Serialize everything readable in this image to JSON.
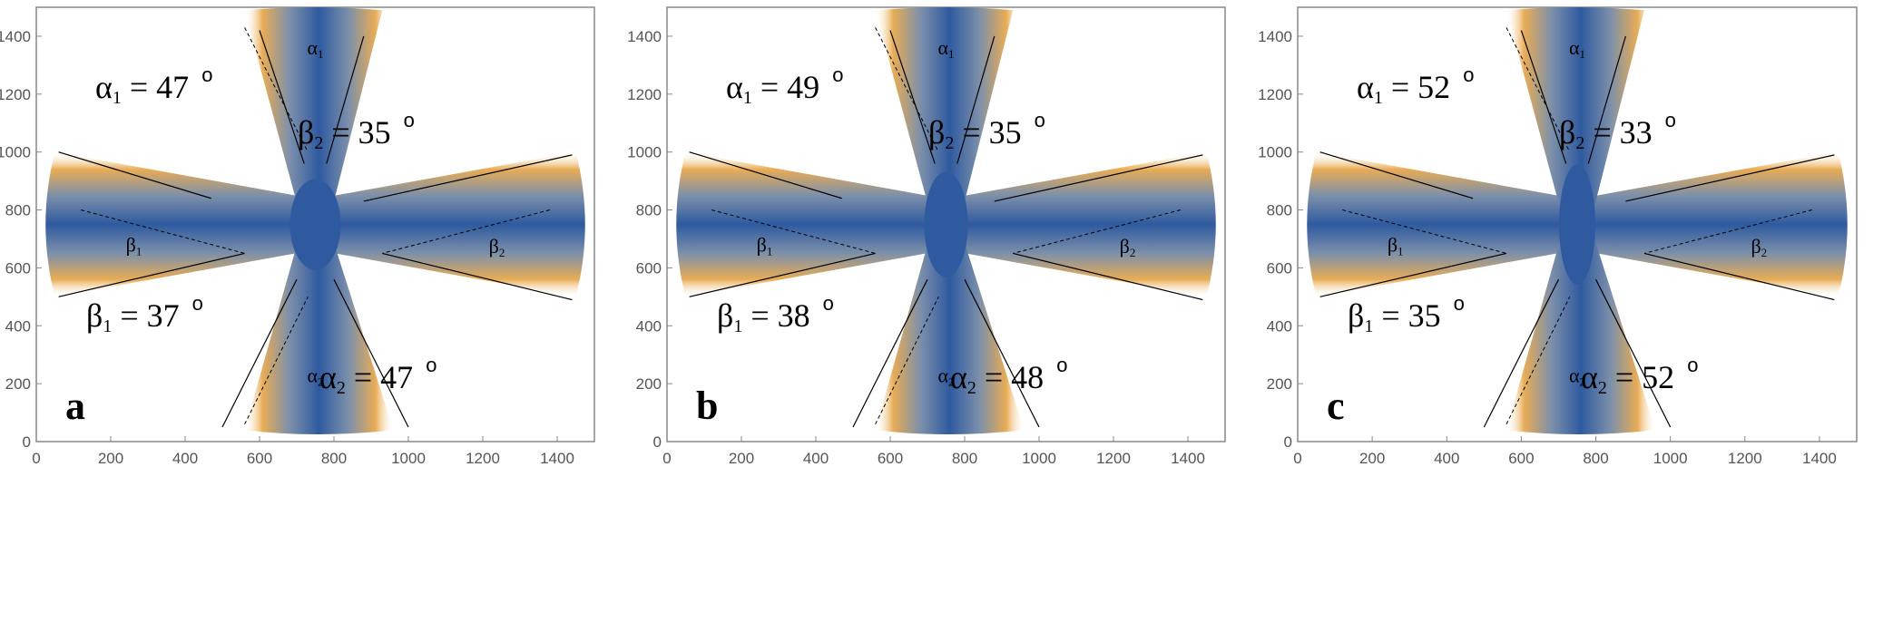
{
  "colors": {
    "center": "#2f5aa0",
    "mid": "#7d90aa",
    "edge": "#e8ac55",
    "fade": "#fff6e6",
    "frame": "#888888"
  },
  "chart_data": [
    {
      "type": "heatmap",
      "panel_label": "a",
      "xlim": [
        0,
        1500
      ],
      "ylim": [
        0,
        1500
      ],
      "xticks": [
        "0",
        "200",
        "400",
        "600",
        "800",
        "1000",
        "1200",
        "1400"
      ],
      "yticks": [
        "0",
        "200",
        "400",
        "600",
        "800",
        "1000",
        "1200",
        "1400"
      ],
      "lobes": [
        {
          "name": "α1",
          "greek": "α",
          "sub": "1",
          "value": "47",
          "deg": "o",
          "direction": "up"
        },
        {
          "name": "α2",
          "greek": "α",
          "sub": "2",
          "value": "47",
          "deg": "o",
          "direction": "down"
        },
        {
          "name": "β1",
          "greek": "β",
          "sub": "1",
          "value": "37",
          "deg": "o",
          "direction": "left"
        },
        {
          "name": "β2",
          "greek": "β",
          "sub": "2",
          "value": "35",
          "deg": "o",
          "direction": "right"
        }
      ]
    },
    {
      "type": "heatmap",
      "panel_label": "b",
      "xlim": [
        0,
        1500
      ],
      "ylim": [
        0,
        1500
      ],
      "xticks": [
        "0",
        "200",
        "400",
        "600",
        "800",
        "1000",
        "1200",
        "1400"
      ],
      "yticks": [
        "0",
        "200",
        "400",
        "600",
        "800",
        "1000",
        "1200",
        "1400"
      ],
      "lobes": [
        {
          "name": "α1",
          "greek": "α",
          "sub": "1",
          "value": "49",
          "deg": "o",
          "direction": "up"
        },
        {
          "name": "α2",
          "greek": "α",
          "sub": "2",
          "value": "48",
          "deg": "o",
          "direction": "down"
        },
        {
          "name": "β1",
          "greek": "β",
          "sub": "1",
          "value": "38",
          "deg": "o",
          "direction": "left"
        },
        {
          "name": "β2",
          "greek": "β",
          "sub": "2",
          "value": "35",
          "deg": "o",
          "direction": "right"
        }
      ]
    },
    {
      "type": "heatmap",
      "panel_label": "c",
      "xlim": [
        0,
        1500
      ],
      "ylim": [
        0,
        1500
      ],
      "xticks": [
        "0",
        "200",
        "400",
        "600",
        "800",
        "1000",
        "1200",
        "1400"
      ],
      "yticks": [
        "0",
        "200",
        "400",
        "600",
        "800",
        "1000",
        "1200",
        "1400"
      ],
      "lobes": [
        {
          "name": "α1",
          "greek": "α",
          "sub": "1",
          "value": "52",
          "deg": "o",
          "direction": "up"
        },
        {
          "name": "α2",
          "greek": "α",
          "sub": "2",
          "value": "52",
          "deg": "o",
          "direction": "down"
        },
        {
          "name": "β1",
          "greek": "β",
          "sub": "1",
          "value": "35",
          "deg": "o",
          "direction": "left"
        },
        {
          "name": "β2",
          "greek": "β",
          "sub": "2",
          "value": "33",
          "deg": "o",
          "direction": "right"
        }
      ]
    }
  ]
}
